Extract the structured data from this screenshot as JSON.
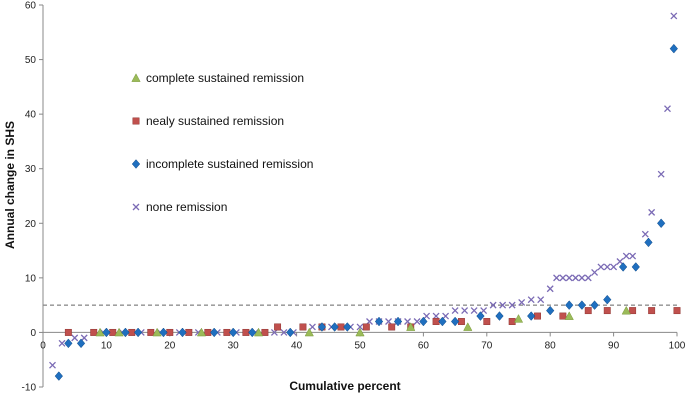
{
  "chart_data": {
    "type": "scatter",
    "title": "",
    "xlabel": "Cumulative percent",
    "ylabel": "Annual change in SHS",
    "xlim": [
      0,
      100
    ],
    "ylim": [
      -10,
      60
    ],
    "x_ticks": [
      0,
      10,
      20,
      30,
      40,
      50,
      60,
      70,
      80,
      90,
      100
    ],
    "y_ticks": [
      -10,
      0,
      10,
      20,
      30,
      40,
      50,
      60
    ],
    "grid": false,
    "legend_position": "left",
    "reference_line": {
      "y": 5,
      "style": "dashed"
    },
    "series": [
      {
        "name": "complete sustained remission",
        "marker": "triangle",
        "color": "#9bbb59",
        "points": [
          [
            9,
            0
          ],
          [
            12,
            0
          ],
          [
            18,
            0
          ],
          [
            25,
            0
          ],
          [
            34,
            0
          ],
          [
            42,
            0
          ],
          [
            50,
            0
          ],
          [
            58,
            1
          ],
          [
            67,
            1
          ],
          [
            75,
            2.5
          ],
          [
            83,
            3
          ],
          [
            92,
            4
          ]
        ]
      },
      {
        "name": "nealy sustained remission",
        "marker": "square",
        "color": "#c0504d",
        "points": [
          [
            4,
            0
          ],
          [
            8,
            0
          ],
          [
            11,
            0
          ],
          [
            14,
            0
          ],
          [
            17,
            0
          ],
          [
            20,
            0
          ],
          [
            23,
            0
          ],
          [
            26,
            0
          ],
          [
            29,
            0
          ],
          [
            32,
            0
          ],
          [
            35,
            0
          ],
          [
            37,
            1
          ],
          [
            41,
            1
          ],
          [
            44,
            1
          ],
          [
            47,
            1
          ],
          [
            51,
            1
          ],
          [
            55,
            1
          ],
          [
            58,
            1
          ],
          [
            62,
            2
          ],
          [
            66,
            2
          ],
          [
            70,
            2
          ],
          [
            74,
            2
          ],
          [
            78,
            3
          ],
          [
            82,
            3
          ],
          [
            86,
            4
          ],
          [
            89,
            4
          ],
          [
            93,
            4
          ],
          [
            96,
            4
          ],
          [
            100,
            4
          ]
        ]
      },
      {
        "name": "incomplete sustained remission",
        "marker": "diamond",
        "color": "#1f6fbf",
        "points": [
          [
            2.5,
            -8
          ],
          [
            4,
            -2
          ],
          [
            6,
            -2
          ],
          [
            10,
            0
          ],
          [
            13,
            0
          ],
          [
            15,
            0
          ],
          [
            19,
            0
          ],
          [
            22,
            0
          ],
          [
            27,
            0
          ],
          [
            30,
            0
          ],
          [
            33,
            0
          ],
          [
            39,
            0
          ],
          [
            44,
            1
          ],
          [
            46,
            1
          ],
          [
            48,
            1
          ],
          [
            53,
            2
          ],
          [
            56,
            2
          ],
          [
            60,
            2
          ],
          [
            63,
            2
          ],
          [
            65,
            2
          ],
          [
            69,
            3
          ],
          [
            72,
            3
          ],
          [
            77,
            3
          ],
          [
            80,
            4
          ],
          [
            83,
            5
          ],
          [
            85,
            5
          ],
          [
            87,
            5
          ],
          [
            89,
            6
          ],
          [
            91.5,
            12
          ],
          [
            93.5,
            12
          ],
          [
            95.5,
            16.5
          ],
          [
            97.5,
            20
          ],
          [
            99.5,
            52
          ]
        ]
      },
      {
        "name": "none remission",
        "marker": "x",
        "color": "#7b6bb5",
        "points": [
          [
            1.5,
            -6
          ],
          [
            3,
            -2
          ],
          [
            5,
            -1
          ],
          [
            6.5,
            -1
          ],
          [
            8,
            0
          ],
          [
            9.5,
            0
          ],
          [
            11,
            0
          ],
          [
            12.5,
            0
          ],
          [
            14,
            0
          ],
          [
            15.5,
            0
          ],
          [
            17,
            0
          ],
          [
            18.5,
            0
          ],
          [
            20,
            0
          ],
          [
            21.5,
            0
          ],
          [
            23,
            0
          ],
          [
            24.5,
            0
          ],
          [
            26,
            0
          ],
          [
            27.5,
            0
          ],
          [
            29,
            0
          ],
          [
            30.5,
            0
          ],
          [
            32,
            0
          ],
          [
            33.5,
            0
          ],
          [
            35,
            0
          ],
          [
            36.5,
            0
          ],
          [
            38,
            0
          ],
          [
            39.5,
            0
          ],
          [
            41,
            1
          ],
          [
            42.5,
            1
          ],
          [
            44,
            1
          ],
          [
            45.5,
            1
          ],
          [
            47,
            1
          ],
          [
            48.5,
            1
          ],
          [
            50,
            1
          ],
          [
            51.5,
            2
          ],
          [
            53,
            2
          ],
          [
            54.5,
            2
          ],
          [
            56,
            2
          ],
          [
            57.5,
            2
          ],
          [
            59,
            2
          ],
          [
            60.5,
            3
          ],
          [
            62,
            3
          ],
          [
            63.5,
            3
          ],
          [
            65,
            4
          ],
          [
            66.5,
            4
          ],
          [
            68,
            4
          ],
          [
            69.5,
            4
          ],
          [
            71,
            5
          ],
          [
            72.5,
            5
          ],
          [
            74,
            5
          ],
          [
            75.5,
            5.5
          ],
          [
            77,
            6
          ],
          [
            78.5,
            6
          ],
          [
            80,
            8
          ],
          [
            81,
            10
          ],
          [
            82,
            10
          ],
          [
            83,
            10
          ],
          [
            84,
            10
          ],
          [
            85,
            10
          ],
          [
            86,
            10
          ],
          [
            87,
            11
          ],
          [
            88,
            12
          ],
          [
            89,
            12
          ],
          [
            90,
            12
          ],
          [
            91,
            13
          ],
          [
            92,
            14
          ],
          [
            93,
            14
          ],
          [
            95,
            18
          ],
          [
            96,
            22
          ],
          [
            97.5,
            29
          ],
          [
            98.5,
            41
          ],
          [
            99.5,
            58
          ]
        ]
      }
    ]
  }
}
